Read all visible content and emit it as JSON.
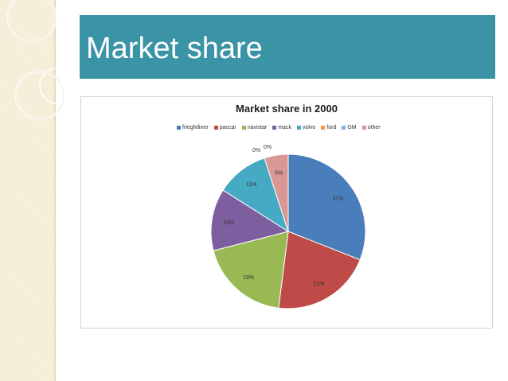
{
  "slide": {
    "title": "Market share"
  },
  "theme": {
    "title_bar_color": "#3a94a6",
    "sidebar_color": "#f8f0dc"
  },
  "chart_data": {
    "type": "pie",
    "title": "Market share in 2000",
    "legend_position": "top",
    "categories": [
      "frieghtliner",
      "paccar",
      "navistar",
      "mack",
      "volvo",
      "ford",
      "GM",
      "other"
    ],
    "values": [
      31,
      21,
      19,
      13,
      11,
      0,
      0,
      5
    ],
    "labels": [
      "31%",
      "21%",
      "19%",
      "13%",
      "11%",
      "0%",
      "0%",
      "5%"
    ],
    "colors": [
      "#4a7ebb",
      "#be4b48",
      "#98b954",
      "#7d5fa0",
      "#46aac5",
      "#f69546",
      "#8caedb",
      "#d99795"
    ]
  }
}
